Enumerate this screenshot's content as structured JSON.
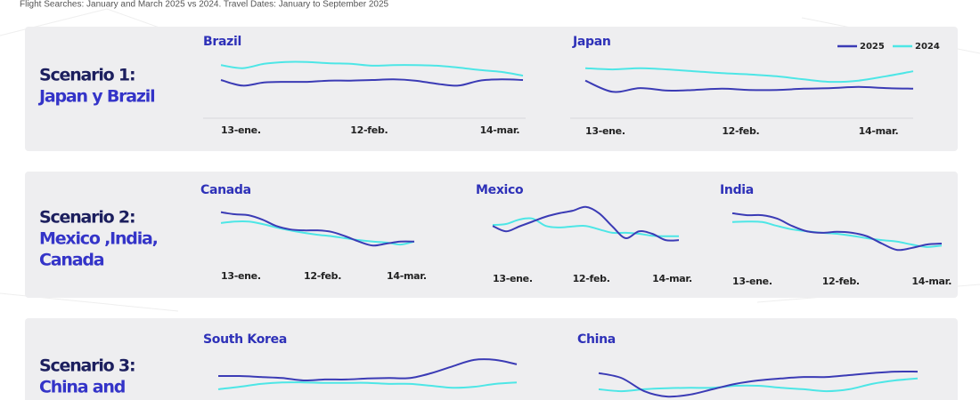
{
  "subtitle": "Flight Searches: January and March 2025 vs 2024. Travel Dates: January to September 2025",
  "scenarios": [
    {
      "lines": [
        "Scenario 1:",
        "Japan y Brazil"
      ]
    },
    {
      "lines": [
        "Scenario 2:",
        "Mexico ,India,",
        "Canada"
      ]
    },
    {
      "lines": [
        "Scenario 3:",
        "China and"
      ]
    }
  ],
  "legend": [
    {
      "name": "2025",
      "color": "#3b3bb5"
    },
    {
      "name": "2024",
      "color": "#4de6e6"
    }
  ],
  "chart_data": [
    {
      "type": "line",
      "title": "Brazil",
      "ylim": [
        0,
        100
      ],
      "categories": [
        "13-ene.",
        null,
        null,
        null,
        null,
        null,
        "12-feb.",
        null,
        null,
        null,
        null,
        null,
        "14-mar.",
        null,
        null
      ],
      "series": [
        {
          "values": [
            50,
            41,
            46,
            47,
            47,
            49,
            49,
            50,
            51,
            49,
            44,
            41,
            49,
            51,
            50
          ]
        },
        {
          "values": [
            74,
            69,
            76,
            79,
            79,
            77,
            76,
            73,
            74,
            74,
            73,
            70,
            66,
            63,
            57
          ]
        }
      ]
    },
    {
      "type": "line",
      "title": "Japan",
      "ylim": [
        0,
        100
      ],
      "legend": true,
      "categories": [
        "13-ene.",
        null,
        null,
        null,
        null,
        "12-feb.",
        null,
        null,
        null,
        null,
        "14-mar.",
        null,
        null
      ],
      "series": [
        {
          "values": [
            49,
            31,
            37,
            33,
            34,
            36,
            34,
            34,
            36,
            37,
            39,
            37,
            36
          ]
        },
        {
          "values": [
            69,
            67,
            69,
            67,
            64,
            61,
            59,
            56,
            51,
            47,
            49,
            56,
            64
          ]
        }
      ]
    },
    {
      "type": "line",
      "title": "Canada",
      "ylim": [
        0,
        100
      ],
      "categories": [
        "13-ene.",
        null,
        null,
        null,
        null,
        null,
        "12-feb.",
        null,
        null,
        null,
        null,
        null,
        "14-mar.",
        null,
        null
      ],
      "series": [
        {
          "values": [
            84,
            80,
            78,
            69,
            56,
            49,
            47,
            47,
            44,
            35,
            24,
            16,
            20,
            24,
            24
          ]
        },
        {
          "values": [
            62,
            65,
            65,
            60,
            53,
            47,
            42,
            38,
            35,
            31,
            27,
            24,
            22,
            18,
            24
          ]
        }
      ]
    },
    {
      "type": "line",
      "title": "Mexico",
      "ylim": [
        0,
        100
      ],
      "categories": [
        "13-ene.",
        null,
        null,
        null,
        null,
        null,
        "12-feb.",
        null,
        null,
        null,
        null,
        null,
        "14-mar.",
        null,
        null
      ],
      "series": [
        {
          "values": [
            56,
            45,
            55,
            65,
            75,
            82,
            87,
            95,
            82,
            55,
            31,
            45,
            40,
            27,
            27
          ]
        },
        {
          "values": [
            58,
            60,
            69,
            71,
            56,
            53,
            55,
            56,
            49,
            42,
            42,
            40,
            36,
            35,
            35
          ]
        }
      ]
    },
    {
      "type": "line",
      "title": "India",
      "ylim": [
        0,
        100
      ],
      "categories": [
        "13-ene.",
        null,
        null,
        null,
        null,
        null,
        "12-feb.",
        null,
        null,
        null,
        null,
        null,
        "14-mar.",
        null,
        null
      ],
      "series": [
        {
          "values": [
            82,
            78,
            78,
            71,
            56,
            45,
            42,
            44,
            42,
            35,
            20,
            7,
            11,
            18,
            20
          ]
        },
        {
          "values": [
            64,
            65,
            64,
            56,
            49,
            45,
            42,
            40,
            36,
            31,
            27,
            24,
            18,
            13,
            16
          ]
        }
      ]
    },
    {
      "type": "line",
      "title": "South Korea",
      "ylim": [
        0,
        100
      ],
      "series": [
        {
          "values": [
            49,
            49,
            47,
            45,
            40,
            42,
            42,
            44,
            45,
            45,
            55,
            69,
            82,
            82,
            73
          ]
        },
        {
          "values": [
            22,
            27,
            33,
            36,
            36,
            35,
            35,
            35,
            33,
            33,
            29,
            25,
            27,
            33,
            36
          ]
        }
      ]
    },
    {
      "type": "line",
      "title": "China",
      "ylim": [
        0,
        100
      ],
      "series": [
        {
          "values": [
            55,
            45,
            18,
            7,
            11,
            22,
            33,
            40,
            44,
            47,
            47,
            51,
            55,
            58,
            58
          ]
        },
        {
          "values": [
            22,
            18,
            22,
            24,
            25,
            25,
            29,
            29,
            25,
            22,
            18,
            22,
            33,
            40,
            44
          ]
        }
      ]
    }
  ]
}
